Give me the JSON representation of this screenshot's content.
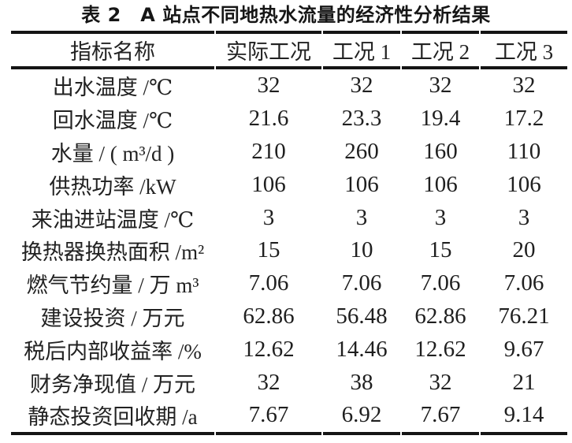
{
  "caption": "表 2　A 站点不同地热水流量的经济性分析结果",
  "colors": {
    "background": "#ffffff",
    "text": "#1f1f1f",
    "rule": "#141414"
  },
  "table": {
    "headers": [
      "指标名称",
      "实际工况",
      "工况 1",
      "工况 2",
      "工况 3"
    ],
    "rows": [
      {
        "label": "出水温度 /℃",
        "values": [
          "32",
          "32",
          "32",
          "32"
        ]
      },
      {
        "label": "回水温度 /℃",
        "values": [
          "21.6",
          "23.3",
          "19.4",
          "17.2"
        ]
      },
      {
        "label": "水量 / ( m³/d )",
        "values": [
          "210",
          "260",
          "160",
          "110"
        ]
      },
      {
        "label": "供热功率 /kW",
        "values": [
          "106",
          "106",
          "106",
          "106"
        ]
      },
      {
        "label": "来油进站温度 /℃",
        "values": [
          "3",
          "3",
          "3",
          "3"
        ]
      },
      {
        "label": "换热器换热面积 /m²",
        "values": [
          "15",
          "10",
          "15",
          "20"
        ]
      },
      {
        "label": "燃气节约量 / 万 m³",
        "values": [
          "7.06",
          "7.06",
          "7.06",
          "7.06"
        ]
      },
      {
        "label": "建设投资 / 万元",
        "values": [
          "62.86",
          "56.48",
          "62.86",
          "76.21"
        ]
      },
      {
        "label": "税后内部收益率 /%",
        "values": [
          "12.62",
          "14.46",
          "12.62",
          "9.67"
        ]
      },
      {
        "label": "财务净现值 / 万元",
        "values": [
          "32",
          "38",
          "32",
          "21"
        ]
      },
      {
        "label": "静态投资回收期 /a",
        "values": [
          "7.67",
          "6.92",
          "7.67",
          "9.14"
        ]
      }
    ]
  },
  "chart_data": {
    "type": "table",
    "title": "表 2　A 站点不同地热水流量的经济性分析结果",
    "columns": [
      "指标名称",
      "实际工况",
      "工况 1",
      "工况 2",
      "工况 3"
    ],
    "rows": [
      [
        "出水温度 /℃",
        32,
        32,
        32,
        32
      ],
      [
        "回水温度 /℃",
        21.6,
        23.3,
        19.4,
        17.2
      ],
      [
        "水量 / ( m³/d )",
        210,
        260,
        160,
        110
      ],
      [
        "供热功率 /kW",
        106,
        106,
        106,
        106
      ],
      [
        "来油进站温度 /℃",
        3,
        3,
        3,
        3
      ],
      [
        "换热器换热面积 /m²",
        15,
        10,
        15,
        20
      ],
      [
        "燃气节约量 / 万 m³",
        7.06,
        7.06,
        7.06,
        7.06
      ],
      [
        "建设投资 / 万元",
        62.86,
        56.48,
        62.86,
        76.21
      ],
      [
        "税后内部收益率 /%",
        12.62,
        14.46,
        12.62,
        9.67
      ],
      [
        "财务净现值 / 万元",
        32,
        38,
        32,
        21
      ],
      [
        "静态投资回收期 /a",
        7.67,
        6.92,
        7.67,
        9.14
      ]
    ]
  }
}
